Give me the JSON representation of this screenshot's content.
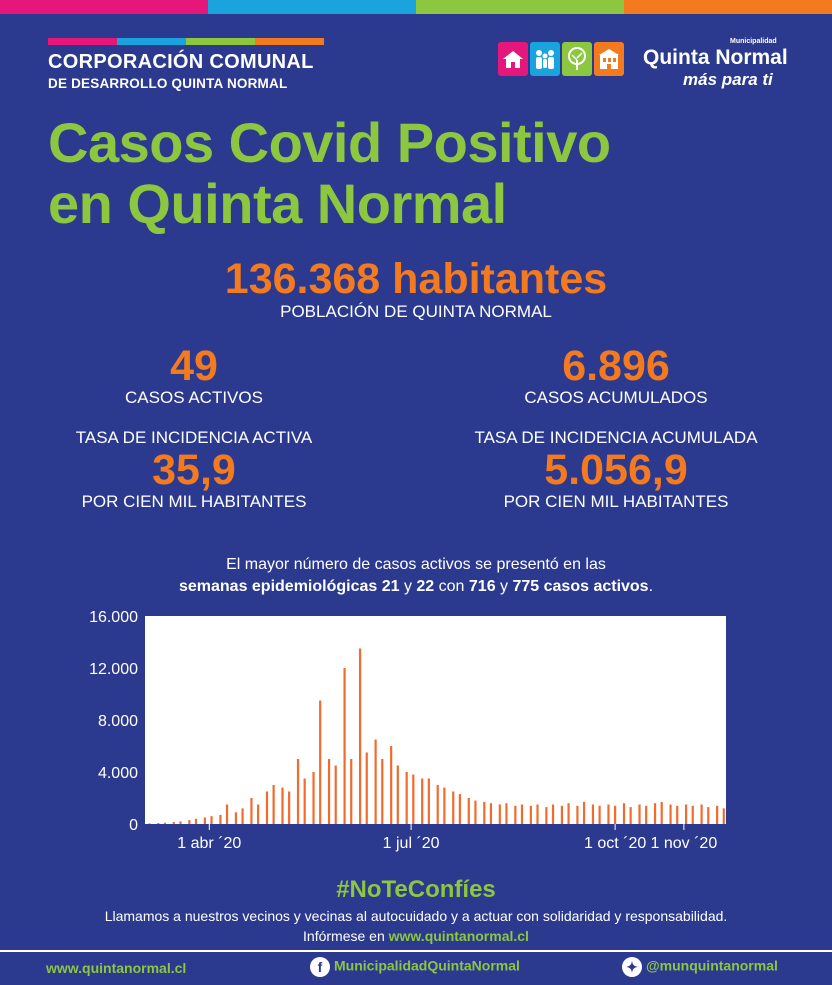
{
  "colors": {
    "background": "#2b3a8e",
    "green": "#8dc63f",
    "orange": "#f47a20",
    "blue": "#1aa3dc",
    "magenta": "#e6177a",
    "bar": "#f26b2e"
  },
  "header": {
    "org_line1": "CORPORACIÓN COMUNAL",
    "org_line2": "DE DESARROLLO QUINTA NORMAL",
    "muni_small": "Municipalidad",
    "muni_name": "Quinta Normal",
    "muni_slogan": "más para ti"
  },
  "title_line1": "Casos Covid Positivo",
  "title_line2": "en Quinta Normal",
  "population": {
    "value": "136.368 habitantes",
    "label": "POBLACIÓN DE QUINTA NORMAL"
  },
  "stats": {
    "active": {
      "value": "49",
      "label": "CASOS ACTIVOS"
    },
    "cumulative": {
      "value": "6.896",
      "label": "CASOS ACUMULADOS"
    },
    "active_rate": {
      "title": "TASA DE INCIDENCIA ACTIVA",
      "value": "35,9",
      "label": "POR CIEN MIL HABITANTES"
    },
    "cumulative_rate": {
      "title": "TASA DE INCIDENCIA ACUMULADA",
      "value": "5.056,9",
      "label": "POR CIEN MIL HABITANTES"
    }
  },
  "note": {
    "line1": "El mayor número de casos activos se presentó en las",
    "b1": "semanas epidemiológicas 21",
    "t1": " y ",
    "b2": "22",
    "t2": " con ",
    "b3": "716",
    "t3": " y ",
    "b4": "775 casos activos",
    "t4": "."
  },
  "chart_data": {
    "type": "bar",
    "x_start": "2020-03-03",
    "x_end": "2020-11-20",
    "ylim": [
      0,
      16000
    ],
    "yticks": [
      "0",
      "4.000",
      "8.000",
      "12.000",
      "16.000"
    ],
    "xticks": [
      {
        "date": "2020-04-01",
        "label": "1 abr ´20"
      },
      {
        "date": "2020-07-01",
        "label": "1 jul ´20"
      },
      {
        "date": "2020-10-01",
        "label": "1 oct ´20"
      },
      {
        "date": "2020-11-01",
        "label": "1 nov ´20"
      }
    ],
    "points": [
      [
        "2020-03-05",
        50
      ],
      [
        "2020-03-09",
        80
      ],
      [
        "2020-03-12",
        100
      ],
      [
        "2020-03-16",
        150
      ],
      [
        "2020-03-19",
        200
      ],
      [
        "2020-03-23",
        300
      ],
      [
        "2020-03-26",
        400
      ],
      [
        "2020-03-30",
        500
      ],
      [
        "2020-04-02",
        600
      ],
      [
        "2020-04-06",
        700
      ],
      [
        "2020-04-09",
        1500
      ],
      [
        "2020-04-13",
        900
      ],
      [
        "2020-04-16",
        1200
      ],
      [
        "2020-04-20",
        2000
      ],
      [
        "2020-04-23",
        1500
      ],
      [
        "2020-04-27",
        2500
      ],
      [
        "2020-04-30",
        3000
      ],
      [
        "2020-05-04",
        2800
      ],
      [
        "2020-05-07",
        2500
      ],
      [
        "2020-05-11",
        5000
      ],
      [
        "2020-05-14",
        3500
      ],
      [
        "2020-05-18",
        4000
      ],
      [
        "2020-05-21",
        9500
      ],
      [
        "2020-05-25",
        5000
      ],
      [
        "2020-05-28",
        4500
      ],
      [
        "2020-06-01",
        12000
      ],
      [
        "2020-06-04",
        5000
      ],
      [
        "2020-06-08",
        13500
      ],
      [
        "2020-06-11",
        5500
      ],
      [
        "2020-06-15",
        6500
      ],
      [
        "2020-06-18",
        5000
      ],
      [
        "2020-06-22",
        6000
      ],
      [
        "2020-06-25",
        4500
      ],
      [
        "2020-06-29",
        4000
      ],
      [
        "2020-07-02",
        3800
      ],
      [
        "2020-07-06",
        3500
      ],
      [
        "2020-07-09",
        3500
      ],
      [
        "2020-07-13",
        3000
      ],
      [
        "2020-07-16",
        2800
      ],
      [
        "2020-07-20",
        2500
      ],
      [
        "2020-07-23",
        2300
      ],
      [
        "2020-07-27",
        2000
      ],
      [
        "2020-07-30",
        1800
      ],
      [
        "2020-08-03",
        1700
      ],
      [
        "2020-08-06",
        1600
      ],
      [
        "2020-08-10",
        1500
      ],
      [
        "2020-08-13",
        1600
      ],
      [
        "2020-08-17",
        1400
      ],
      [
        "2020-08-20",
        1500
      ],
      [
        "2020-08-24",
        1400
      ],
      [
        "2020-08-27",
        1500
      ],
      [
        "2020-08-31",
        1300
      ],
      [
        "2020-09-03",
        1500
      ],
      [
        "2020-09-07",
        1400
      ],
      [
        "2020-09-10",
        1600
      ],
      [
        "2020-09-14",
        1400
      ],
      [
        "2020-09-17",
        1700
      ],
      [
        "2020-09-21",
        1500
      ],
      [
        "2020-09-24",
        1400
      ],
      [
        "2020-09-28",
        1500
      ],
      [
        "2020-10-01",
        1400
      ],
      [
        "2020-10-05",
        1600
      ],
      [
        "2020-10-08",
        1300
      ],
      [
        "2020-10-12",
        1500
      ],
      [
        "2020-10-15",
        1400
      ],
      [
        "2020-10-19",
        1600
      ],
      [
        "2020-10-22",
        1700
      ],
      [
        "2020-10-26",
        1500
      ],
      [
        "2020-10-29",
        1400
      ],
      [
        "2020-11-02",
        1500
      ],
      [
        "2020-11-05",
        1400
      ],
      [
        "2020-11-09",
        1500
      ],
      [
        "2020-11-12",
        1300
      ],
      [
        "2020-11-16",
        1400
      ],
      [
        "2020-11-19",
        1200
      ]
    ]
  },
  "hashtag": "#NoTeConfíes",
  "call": {
    "line1": "Llamamos a nuestros vecinos y vecinas al autocuidado y a actuar con solidaridad y responsabilidad.",
    "line2_prefix": "Infórmese en ",
    "line2_url": "www.quintanormal.cl"
  },
  "footer": {
    "website": "www.quintanormal.cl",
    "facebook": "MunicipalidadQuintaNormal",
    "facebook_icon": "facebook-icon",
    "twitter": "@munquintanormal",
    "twitter_icon": "twitter-icon"
  }
}
